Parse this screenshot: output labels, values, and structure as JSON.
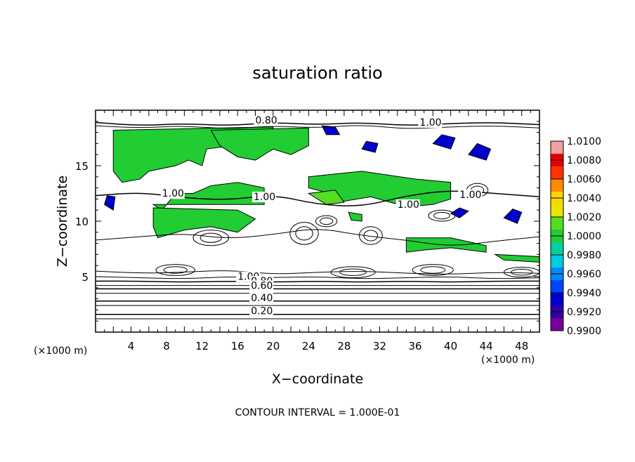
{
  "chart_data": {
    "type": "heatmap",
    "title": "saturation ratio",
    "xlabel": "X−coordinate",
    "ylabel": "Z−coordinate",
    "x_unit": "(×1000 m)",
    "y_unit": "(×1000 m)",
    "footer": "CONTOUR INTERVAL = 1.000E-01",
    "xlim": [
      0,
      50
    ],
    "ylim": [
      0,
      20
    ],
    "x_ticks": [
      4,
      8,
      12,
      16,
      20,
      24,
      28,
      32,
      36,
      40,
      44,
      48
    ],
    "y_ticks": [
      5,
      10,
      15
    ],
    "colorbar": {
      "levels": [
        "1.0100",
        "1.0080",
        "1.0060",
        "1.0040",
        "1.0020",
        "1.0000",
        "0.9980",
        "0.9960",
        "0.9940",
        "0.9920",
        "0.9900"
      ],
      "colors": [
        "#f2a0a0",
        "#e60000",
        "#ff3300",
        "#ff8c00",
        "#ffd400",
        "#e6e600",
        "#55dd22",
        "#22cc33",
        "#00d0a0",
        "#00ccdd",
        "#0088ff",
        "#0044ff",
        "#0000cc",
        "#3300aa",
        "#770099"
      ]
    },
    "contour_labels": [
      {
        "text": "0.80",
        "x": 18,
        "y": 18.8
      },
      {
        "text": "1.00",
        "x": 36.5,
        "y": 18.6
      },
      {
        "text": "1.00",
        "x": 7.5,
        "y": 12.2
      },
      {
        "text": "1.00",
        "x": 17.8,
        "y": 11.9
      },
      {
        "text": "1.00",
        "x": 34,
        "y": 11.2
      },
      {
        "text": "1.00",
        "x": 41,
        "y": 12.1
      },
      {
        "text": "1.00",
        "x": 16,
        "y": 4.7
      },
      {
        "text": "0.80",
        "x": 17.5,
        "y": 4.3
      },
      {
        "text": "0.60",
        "x": 17.5,
        "y": 3.9
      },
      {
        "text": "0.40",
        "x": 17.5,
        "y": 2.8
      },
      {
        "text": "0.20",
        "x": 17.5,
        "y": 1.6
      }
    ],
    "regions": [
      {
        "value": 1.0,
        "pts": [
          [
            2,
            18.2
          ],
          [
            20,
            18.5
          ],
          [
            20,
            17.5
          ],
          [
            17,
            17
          ],
          [
            12.5,
            16.5
          ],
          [
            12,
            15
          ],
          [
            10.5,
            15.5
          ],
          [
            9,
            15
          ],
          [
            6,
            14.5
          ],
          [
            5,
            13.8
          ],
          [
            3,
            13.5
          ],
          [
            2,
            14.5
          ]
        ]
      },
      {
        "value": 1.0,
        "pts": [
          [
            13,
            18.2
          ],
          [
            24,
            18.4
          ],
          [
            24,
            16.8
          ],
          [
            22,
            16
          ],
          [
            20,
            16.5
          ],
          [
            18,
            15.5
          ],
          [
            16,
            15.8
          ],
          [
            14,
            16.8
          ]
        ]
      },
      {
        "value": 1.0,
        "pts": [
          [
            6.5,
            11.5
          ],
          [
            19,
            11.5
          ],
          [
            19,
            13
          ],
          [
            16,
            13.5
          ],
          [
            13,
            13.2
          ],
          [
            11,
            12.5
          ],
          [
            9,
            12.5
          ],
          [
            7.5,
            11
          ]
        ]
      },
      {
        "value": 1.0,
        "pts": [
          [
            6.5,
            11.2
          ],
          [
            16,
            11
          ],
          [
            18,
            10.2
          ],
          [
            16,
            9
          ],
          [
            13,
            9.5
          ],
          [
            10,
            9.2
          ],
          [
            7,
            8.5
          ],
          [
            6.5,
            9.5
          ]
        ]
      },
      {
        "value": 1.0,
        "pts": [
          [
            24,
            14
          ],
          [
            30,
            14.5
          ],
          [
            36,
            13.8
          ],
          [
            40,
            13.5
          ],
          [
            40,
            12
          ],
          [
            38,
            11.5
          ],
          [
            35,
            11.3
          ],
          [
            31,
            12.2
          ],
          [
            28,
            11.8
          ],
          [
            26,
            12.6
          ],
          [
            24,
            13
          ]
        ]
      },
      {
        "value": 1.002,
        "pts": [
          [
            24,
            12.5
          ],
          [
            26,
            11.5
          ],
          [
            28,
            11.7
          ],
          [
            27,
            12.8
          ]
        ]
      },
      {
        "value": 1.0,
        "pts": [
          [
            35,
            8.5
          ],
          [
            40,
            8.5
          ],
          [
            44,
            7.8
          ],
          [
            44,
            7.2
          ],
          [
            40,
            7.6
          ],
          [
            37,
            7.4
          ],
          [
            35,
            7.2
          ]
        ]
      },
      {
        "value": 1.0,
        "pts": [
          [
            45,
            7
          ],
          [
            50,
            6.8
          ],
          [
            50,
            6.3
          ],
          [
            46,
            6.5
          ]
        ]
      },
      {
        "value": 1.0,
        "pts": [
          [
            28.5,
            10.8
          ],
          [
            30,
            10.6
          ],
          [
            30,
            10
          ],
          [
            28.8,
            10.1
          ]
        ]
      },
      {
        "value": 0.994,
        "pts": [
          [
            38,
            17
          ],
          [
            40,
            16.5
          ],
          [
            40.5,
            17.5
          ],
          [
            39,
            17.8
          ]
        ]
      },
      {
        "value": 0.994,
        "pts": [
          [
            42,
            16
          ],
          [
            44,
            15.5
          ],
          [
            44.5,
            16.5
          ],
          [
            43,
            17
          ]
        ]
      },
      {
        "value": 0.994,
        "pts": [
          [
            40,
            10.7
          ],
          [
            41,
            10.3
          ],
          [
            42,
            10.9
          ],
          [
            41,
            11.2
          ]
        ]
      },
      {
        "value": 0.994,
        "pts": [
          [
            46,
            10.3
          ],
          [
            47.5,
            9.8
          ],
          [
            48,
            10.8
          ],
          [
            47,
            11.1
          ]
        ]
      },
      {
        "value": 0.994,
        "pts": [
          [
            1,
            11.5
          ],
          [
            2,
            11
          ],
          [
            2.2,
            12.2
          ],
          [
            1.3,
            12.3
          ]
        ]
      },
      {
        "value": 0.994,
        "pts": [
          [
            25.5,
            18.6
          ],
          [
            27,
            18.5
          ],
          [
            27.5,
            17.8
          ],
          [
            26,
            17.8
          ]
        ]
      },
      {
        "value": 0.994,
        "pts": [
          [
            30,
            16.5
          ],
          [
            31.5,
            16.2
          ],
          [
            31.8,
            17
          ],
          [
            30.5,
            17.2
          ]
        ]
      }
    ],
    "contours": [
      {
        "ys": [
          18.9,
          18.6,
          18.8,
          18.6,
          18.9,
          18.7,
          18.9,
          18.6,
          18.8,
          18.9,
          18.7
        ],
        "w": 1.5
      },
      {
        "ys": [
          18.6,
          18.4,
          18.6,
          18.3,
          18.6,
          18.4,
          18.7,
          18.3,
          18.5,
          18.6,
          18.4
        ],
        "w": 1
      },
      {
        "ys": [
          5.5,
          5.3,
          5.4,
          5.6,
          5.2,
          5.4,
          5.5,
          5.3,
          5.2,
          5.4,
          5.3
        ],
        "w": 1
      },
      {
        "ys": [
          5.0,
          4.9,
          4.8,
          5.0,
          4.9,
          5.0,
          4.8,
          4.9,
          5.0,
          4.8,
          4.9
        ],
        "w": 1
      },
      {
        "ys": [
          4.6,
          4.6,
          4.5,
          4.6,
          4.5,
          4.6,
          4.5,
          4.6,
          4.5,
          4.6,
          4.6
        ],
        "w": 1.5
      },
      {
        "ys": [
          4.2,
          4.2,
          4.2,
          4.2,
          4.2,
          4.2,
          4.2,
          4.2,
          4.2,
          4.2,
          4.2
        ],
        "w": 1
      },
      {
        "ys": [
          3.9,
          3.9,
          3.9,
          3.9,
          3.9,
          3.9,
          3.9,
          3.9,
          3.9,
          3.9,
          3.9
        ],
        "w": 1.5
      },
      {
        "ys": [
          3.5,
          3.5,
          3.5,
          3.5,
          3.5,
          3.5,
          3.5,
          3.5,
          3.5,
          3.5,
          3.5
        ],
        "w": 1
      },
      {
        "ys": [
          2.8,
          2.8,
          2.8,
          2.8,
          2.8,
          2.8,
          2.8,
          2.8,
          2.8,
          2.8,
          2.8
        ],
        "w": 1.5
      },
      {
        "ys": [
          2.4,
          2.4,
          2.4,
          2.4,
          2.4,
          2.4,
          2.4,
          2.4,
          2.4,
          2.4,
          2.4
        ],
        "w": 1
      },
      {
        "ys": [
          1.6,
          1.6,
          1.6,
          1.6,
          1.6,
          1.6,
          1.6,
          1.6,
          1.6,
          1.6,
          1.6
        ],
        "w": 1.5
      },
      {
        "ys": [
          1.2,
          1.2,
          1.2,
          1.2,
          1.2,
          1.2,
          1.2,
          1.2,
          1.2,
          1.2,
          1.2
        ],
        "w": 1
      },
      {
        "ys": [
          12.3,
          12.6,
          12.1,
          11.9,
          12.4,
          11.5,
          11.3,
          12.3,
          12.8,
          12.5,
          12.2
        ],
        "w": 1.5
      },
      {
        "ys": [
          8.3,
          8.6,
          8.9,
          8.4,
          8.8,
          9.4,
          8.7,
          8.3,
          7.7,
          8.2,
          8.6
        ],
        "w": 1
      }
    ],
    "blobs": [
      {
        "cx": 9,
        "cy": 5.6,
        "rx": 2.2,
        "ry": 0.5
      },
      {
        "cx": 29,
        "cy": 5.4,
        "rx": 2.5,
        "ry": 0.5
      },
      {
        "cx": 38,
        "cy": 5.6,
        "rx": 2.3,
        "ry": 0.5
      },
      {
        "cx": 48,
        "cy": 5.4,
        "rx": 2,
        "ry": 0.45
      },
      {
        "cx": 23.5,
        "cy": 8.9,
        "rx": 1.6,
        "ry": 1
      },
      {
        "cx": 31,
        "cy": 8.7,
        "rx": 1.3,
        "ry": 0.8
      },
      {
        "cx": 43,
        "cy": 12.8,
        "rx": 1.2,
        "ry": 0.6
      },
      {
        "cx": 39,
        "cy": 10.5,
        "rx": 1.5,
        "ry": 0.5
      },
      {
        "cx": 13,
        "cy": 8.5,
        "rx": 2,
        "ry": 0.7
      },
      {
        "cx": 26,
        "cy": 10,
        "rx": 1.2,
        "ry": 0.5
      }
    ]
  }
}
